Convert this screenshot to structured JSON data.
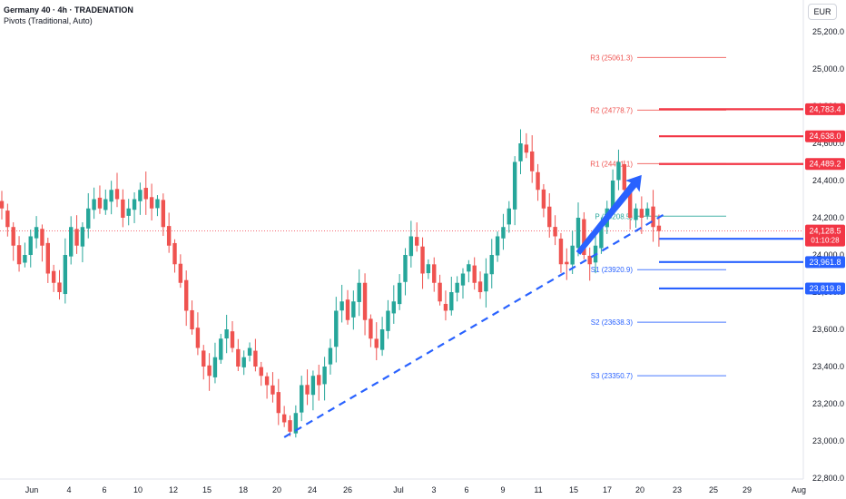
{
  "header": {
    "title": "Germany 40 · 4h · TRADENATION",
    "subtitle": "Pivots (Traditional, Auto)",
    "currency": "EUR"
  },
  "colors": {
    "up": "#26a69a",
    "down": "#ef5350",
    "resistance": "#f23645",
    "support": "#2962ff",
    "trendline": "#2962ff",
    "arrow": "#2962ff",
    "current": "#f23645"
  },
  "chart_data": {
    "type": "candlestick",
    "ylim": [
      22800,
      25300
    ],
    "y_ticks": [
      22800,
      23000,
      23200,
      23400,
      23600,
      23800,
      24000,
      24200,
      24400,
      24600,
      24800,
      25000,
      25200
    ],
    "y_tick_labels": [
      "22,800.0",
      "23,000.0",
      "23,200.0",
      "23,400.0",
      "23,600.0",
      "23,800.0",
      "24,000.0",
      "24,200.0",
      "24,400.0",
      "24,600.0",
      "24,800.0",
      "25,000.0",
      "25,200.0"
    ],
    "x_ticks": [
      "Jun",
      "4",
      "6",
      "10",
      "12",
      "15",
      "18",
      "20",
      "24",
      "26",
      "Jul",
      "3",
      "6",
      "9",
      "11",
      "15",
      "17",
      "20",
      "23",
      "25",
      "29",
      "Aug"
    ],
    "closes": [
      24250,
      24150,
      24050,
      23950,
      24000,
      24100,
      24150,
      24050,
      23900,
      23850,
      23800,
      24000,
      24150,
      24050,
      24150,
      24250,
      24300,
      24250,
      24300,
      24350,
      24300,
      24200,
      24250,
      24300,
      24350,
      24300,
      24250,
      24300,
      24150,
      24050,
      23950,
      23850,
      23700,
      23600,
      23500,
      23400,
      23350,
      23450,
      23550,
      23600,
      23500,
      23400,
      23450,
      23500,
      23400,
      23350,
      23300,
      23250,
      23150,
      23100,
      23050,
      23150,
      23300,
      23250,
      23350,
      23300,
      23400,
      23500,
      23700,
      23750,
      23650,
      23750,
      23850,
      23650,
      23550,
      23500,
      23600,
      23700,
      23750,
      23850,
      24000,
      24100,
      24050,
      23900,
      23950,
      23850,
      23750,
      23700,
      23800,
      23850,
      23900,
      23950,
      23850,
      23800,
      23900,
      24000,
      24100,
      24150,
      24250,
      24500,
      24600,
      24550,
      24450,
      24350,
      24250,
      24150,
      24100,
      23950,
      23950,
      24050,
      24200,
      24000,
      23950,
      24050,
      24150,
      24250,
      24400,
      24500,
      24350,
      24200,
      24250,
      24200,
      24250,
      24150,
      24128.5
    ],
    "pivots": [
      {
        "name": "R3",
        "label": "R3 (25061.3)",
        "value": 25061.3
      },
      {
        "name": "R2",
        "label": "R2 (24778.7)",
        "value": 24778.7
      },
      {
        "name": "R1",
        "label": "R1 (24491.1)",
        "value": 24491.1
      },
      {
        "name": "P",
        "label": "P (24208.5)",
        "value": 24208.5
      },
      {
        "name": "S1",
        "label": "S1 (23920.9)",
        "value": 23920.9
      },
      {
        "name": "S2",
        "label": "S2 (23638.3)",
        "value": 23638.3
      },
      {
        "name": "S3",
        "label": "S3 (23350.7)",
        "value": 23350.7
      }
    ],
    "resistance_levels": [
      {
        "value": 24783.4,
        "label": "24,783.4"
      },
      {
        "value": 24638.0,
        "label": "24,638.0"
      },
      {
        "value": 24489.2,
        "label": "24,489.2"
      }
    ],
    "support_levels": [
      {
        "value": 24086.9,
        "label": "24,086.9"
      },
      {
        "value": 23961.8,
        "label": "23,961.8"
      },
      {
        "value": 23819.8,
        "label": "23,819.8"
      }
    ],
    "current_price": {
      "value": 24128.5,
      "label": "24,128.5",
      "countdown": "01:10:28"
    },
    "trendline": {
      "start": [
        49,
        23020
      ],
      "end": [
        115,
        24220
      ]
    },
    "arrow": {
      "from": [
        100,
        24010
      ],
      "to": [
        111,
        24430
      ]
    }
  }
}
